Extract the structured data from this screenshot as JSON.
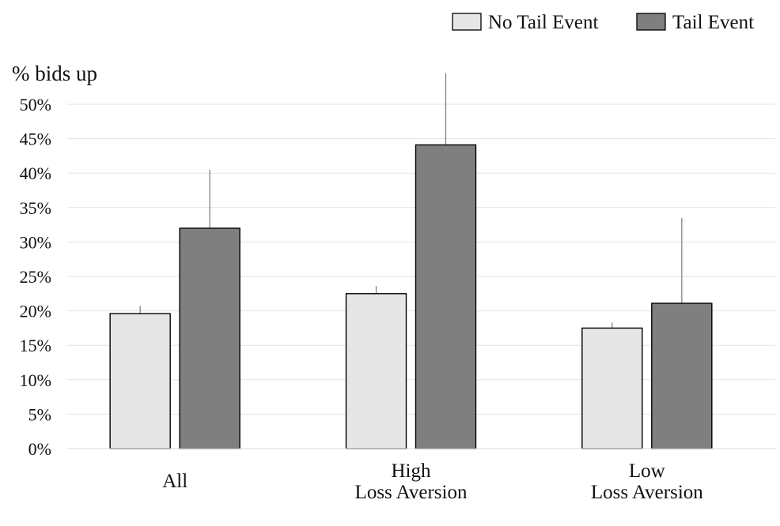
{
  "chart_data": {
    "type": "bar",
    "ylabel": "% bids up",
    "ylim": [
      0,
      50
    ],
    "yticks": [
      "0%",
      "5%",
      "10%",
      "15%",
      "20%",
      "25%",
      "30%",
      "35%",
      "40%",
      "45%",
      "50%"
    ],
    "grid": true,
    "legend_position": "top-right",
    "categories": [
      [
        "All"
      ],
      [
        "High",
        "Loss Aversion"
      ],
      [
        "Low",
        "Loss Aversion"
      ]
    ],
    "series": [
      {
        "name": "No Tail Event",
        "color": "#e6e6e6",
        "values": [
          19.6,
          22.5,
          17.5
        ],
        "error_upper": [
          20.7,
          23.6,
          18.3
        ]
      },
      {
        "name": "Tail  Event",
        "color": "#7f7f7f",
        "values": [
          32.0,
          44.1,
          21.1
        ],
        "error_upper": [
          40.5,
          54.5,
          33.5
        ]
      }
    ]
  }
}
